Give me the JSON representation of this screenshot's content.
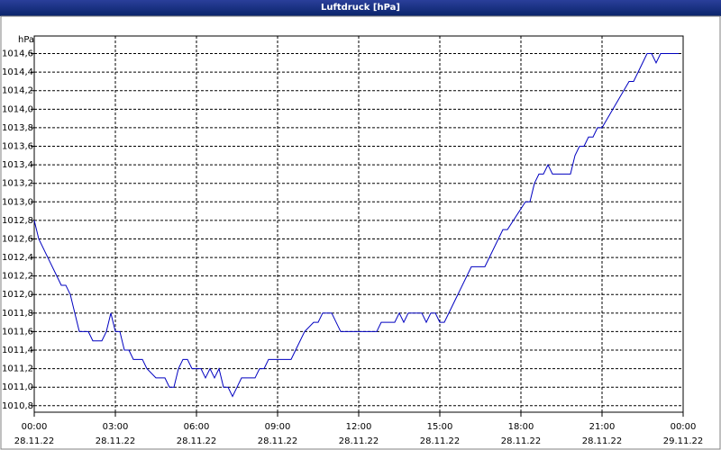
{
  "chart_data": {
    "type": "line",
    "title": "Luftdruck [hPa]",
    "y_label": "hPa",
    "color": "#0000c0",
    "grid": true,
    "x": [
      "00:00 28.11.22",
      "00:10 28.11.22",
      "00:30 28.11.22",
      "00:50 28.11.22",
      "01:00 28.11.22",
      "01:10 28.11.22",
      "01:20 28.11.22",
      "01:30 28.11.22",
      "01:40 28.11.22",
      "02:00 28.11.22",
      "02:10 28.11.22",
      "02:30 28.11.22",
      "02:40 28.11.22",
      "02:50 28.11.22",
      "03:00 28.11.22",
      "03:10 28.11.22",
      "03:20 28.11.22",
      "03:30 28.11.22",
      "03:40 28.11.22",
      "04:00 28.11.22",
      "04:10 28.11.22",
      "04:30 28.11.22",
      "04:50 28.11.22",
      "05:00 28.11.22",
      "05:10 28.11.22",
      "05:20 28.11.22",
      "05:30 28.11.22",
      "05:40 28.11.22",
      "05:50 28.11.22",
      "06:10 28.11.22",
      "06:20 28.11.22",
      "06:30 28.11.22",
      "06:40 28.11.22",
      "06:50 28.11.22",
      "07:00 28.11.22",
      "07:10 28.11.22",
      "07:20 28.11.22",
      "07:30 28.11.22",
      "07:40 28.11.22",
      "08:10 28.11.22",
      "08:20 28.11.22",
      "08:30 28.11.22",
      "08:40 28.11.22",
      "09:30 28.11.22",
      "09:40 28.11.22",
      "10:00 28.11.22",
      "10:20 28.11.22",
      "10:30 28.11.22",
      "10:40 28.11.22",
      "11:00 28.11.22",
      "11:20 28.11.22",
      "12:40 28.11.22",
      "12:50 28.11.22",
      "13:20 28.11.22",
      "13:30 28.11.22",
      "13:40 28.11.22",
      "13:50 28.11.22",
      "14:20 28.11.22",
      "14:30 28.11.22",
      "14:40 28.11.22",
      "14:50 28.11.22",
      "15:00 28.11.22",
      "15:10 28.11.22",
      "16:10 28.11.22",
      "16:40 28.11.22",
      "17:20 28.11.22",
      "17:30 28.11.22",
      "18:10 28.11.22",
      "18:20 28.11.22",
      "18:30 28.11.22",
      "18:40 28.11.22",
      "18:50 28.11.22",
      "19:00 28.11.22",
      "19:10 28.11.22",
      "19:50 28.11.22",
      "20:00 28.11.22",
      "20:10 28.11.22",
      "20:20 28.11.22",
      "20:30 28.11.22",
      "20:40 28.11.22",
      "20:50 28.11.22",
      "21:00 28.11.22",
      "22:00 28.11.22",
      "22:10 28.11.22",
      "22:30 28.11.22",
      "22:40 28.11.22",
      "22:50 28.11.22",
      "23:00 28.11.22",
      "23:10 28.11.22",
      "23:50 28.11.22"
    ],
    "values": [
      1012.8,
      1012.6,
      1012.4,
      1012.2,
      1012.1,
      1012.1,
      1012.0,
      1011.8,
      1011.6,
      1011.6,
      1011.5,
      1011.5,
      1011.6,
      1011.8,
      1011.6,
      1011.6,
      1011.4,
      1011.4,
      1011.3,
      1011.3,
      1011.2,
      1011.1,
      1011.1,
      1011.0,
      1011.0,
      1011.2,
      1011.3,
      1011.3,
      1011.2,
      1011.2,
      1011.1,
      1011.2,
      1011.1,
      1011.2,
      1011.0,
      1011.0,
      1010.9,
      1011.0,
      1011.1,
      1011.1,
      1011.2,
      1011.2,
      1011.3,
      1011.3,
      1011.4,
      1011.6,
      1011.7,
      1011.7,
      1011.8,
      1011.8,
      1011.6,
      1011.6,
      1011.7,
      1011.7,
      1011.8,
      1011.7,
      1011.8,
      1011.8,
      1011.7,
      1011.8,
      1011.8,
      1011.7,
      1011.7,
      1012.3,
      1012.3,
      1012.7,
      1012.7,
      1013.0,
      1013.0,
      1013.2,
      1013.3,
      1013.3,
      1013.4,
      1013.3,
      1013.3,
      1013.5,
      1013.6,
      1013.6,
      1013.7,
      1013.7,
      1013.8,
      1013.8,
      1014.3,
      1014.3,
      1014.5,
      1014.6,
      1014.6,
      1014.5,
      1014.6,
      1014.6
    ],
    "xlim": [
      "00:00 28.11.22",
      "00:00 29.11.22"
    ],
    "xticks": [
      "00:00 28.11.22",
      "03:00 28.11.22",
      "06:00 28.11.22",
      "09:00 28.11.22",
      "12:00 28.11.22",
      "15:00 28.11.22",
      "18:00 28.11.22",
      "21:00 28.11.22",
      "00:00 29.11.22"
    ],
    "ylim": [
      1010.73,
      1014.79
    ],
    "yticks": [
      {
        "value": 1010.8,
        "label": "1010,8"
      },
      {
        "value": 1011.0,
        "label": "1011,0"
      },
      {
        "value": 1011.2,
        "label": "1011,2"
      },
      {
        "value": 1011.4,
        "label": "1011,4"
      },
      {
        "value": 1011.6,
        "label": "1011,6"
      },
      {
        "value": 1011.8,
        "label": "1011,8"
      },
      {
        "value": 1012.0,
        "label": "1012,0"
      },
      {
        "value": 1012.2,
        "label": "1012,2"
      },
      {
        "value": 1012.4,
        "label": "1012,4"
      },
      {
        "value": 1012.6,
        "label": "1012,6"
      },
      {
        "value": 1012.8,
        "label": "1012,8"
      },
      {
        "value": 1013.0,
        "label": "1013,0"
      },
      {
        "value": 1013.2,
        "label": "1013,2"
      },
      {
        "value": 1013.4,
        "label": "1013,4"
      },
      {
        "value": 1013.6,
        "label": "1013,6"
      },
      {
        "value": 1013.8,
        "label": "1013,8"
      },
      {
        "value": 1014.0,
        "label": "1014,0"
      },
      {
        "value": 1014.2,
        "label": "1014,2"
      },
      {
        "value": 1014.4,
        "label": "1014,4"
      },
      {
        "value": 1014.6,
        "label": "1014,6"
      }
    ]
  }
}
